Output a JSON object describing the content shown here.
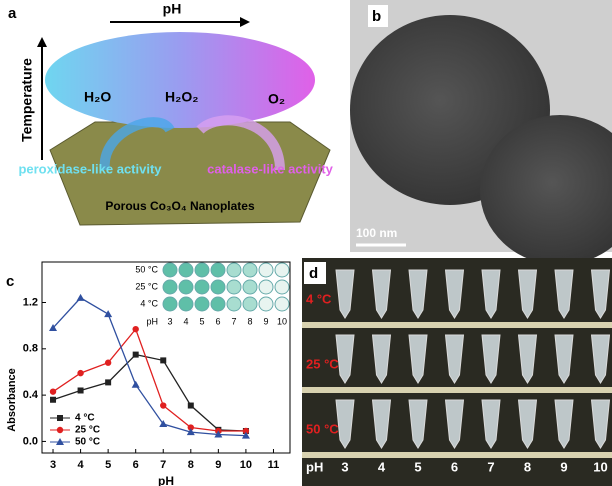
{
  "panel_a": {
    "label": "a",
    "x_arrow": "pH",
    "y_arrow": "Temperature",
    "left_product": "H₂O",
    "center_species": "H₂O₂",
    "right_product": "O₂",
    "left_activity": "peroxidase-like activity",
    "right_activity": "catalase-like activity",
    "plate": "Porous Co₃O₄ Nanoplates"
  },
  "panel_b": {
    "label": "b",
    "scale_bar": "100 nm"
  },
  "chart_data": {
    "type": "line",
    "label": "c",
    "x_label": "pH",
    "y_label": "Absorbance",
    "x": [
      3,
      4,
      5,
      6,
      7,
      8,
      9,
      10
    ],
    "series": [
      {
        "name": "4 °C",
        "color": "#222222",
        "marker": "square",
        "values": [
          0.36,
          0.44,
          0.51,
          0.75,
          0.7,
          0.31,
          0.1,
          0.09
        ]
      },
      {
        "name": "25 °C",
        "color": "#e02020",
        "marker": "circle",
        "values": [
          0.43,
          0.59,
          0.68,
          0.97,
          0.31,
          0.12,
          0.09,
          0.09
        ]
      },
      {
        "name": "50 °C",
        "color": "#3050a0",
        "marker": "triangle",
        "values": [
          0.98,
          1.24,
          1.1,
          0.49,
          0.15,
          0.08,
          0.06,
          0.05
        ]
      }
    ],
    "xlim": [
      2.6,
      11.6
    ],
    "xticks": [
      3,
      4,
      5,
      6,
      7,
      8,
      9,
      10,
      11
    ],
    "ylim": [
      -0.1,
      1.55
    ],
    "yticks": [
      {
        "value": 0,
        "label": "0.0"
      },
      0.4,
      0.8,
      1.2
    ],
    "legend": "lower left",
    "inset": {
      "row_labels": [
        "50 °C",
        "25 °C",
        "4 °C"
      ],
      "column_title": "pH",
      "columns": [
        3,
        4,
        5,
        6,
        7,
        8,
        9,
        10
      ]
    }
  },
  "panel_d": {
    "label": "d",
    "row_labels": [
      "4 °C",
      "25 °C",
      "50 °C"
    ],
    "column_title": "pH",
    "columns": [
      3,
      4,
      5,
      6,
      7,
      8,
      9,
      10
    ]
  }
}
